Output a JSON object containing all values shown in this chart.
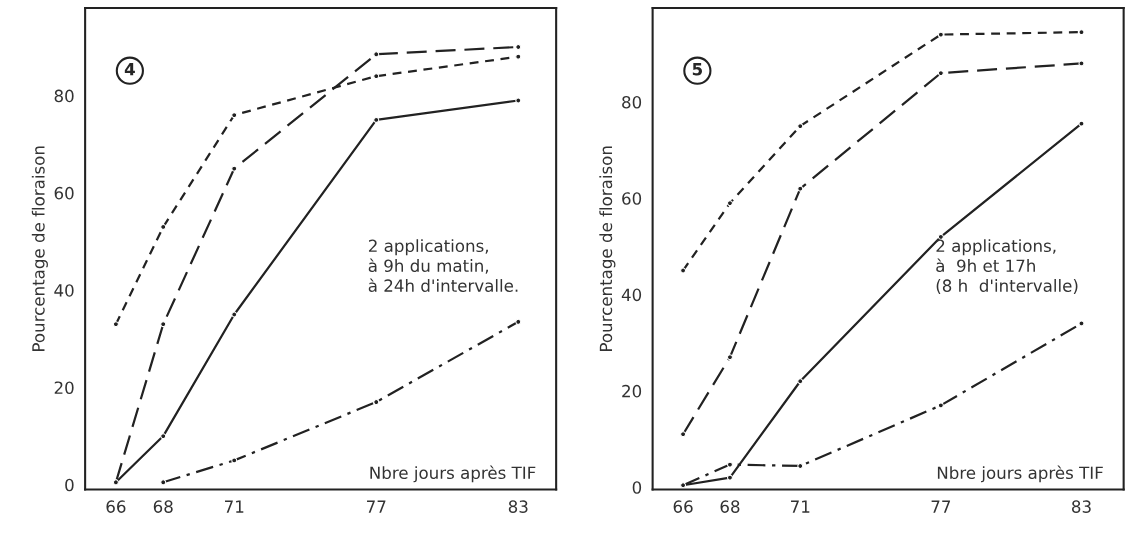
{
  "chart_data": [
    {
      "type": "line",
      "ylabel": "Pourcentage de floraison",
      "xlabel": "Nbre jours après TIF",
      "x": [
        66,
        68,
        71,
        77,
        83
      ],
      "xlim": [
        64.7,
        84.6
      ],
      "ylim": [
        -1,
        98
      ],
      "xticks": [
        66,
        68,
        71,
        77,
        83
      ],
      "yticks": [
        0,
        20,
        40,
        60,
        80
      ],
      "grid": false,
      "legend": false,
      "marker": "circle",
      "annotations": [
        "4",
        "2 applications,\nà 9h du matin,\nà 24h d'intervalle."
      ],
      "series": [
        {
          "color": "#222222",
          "line_style": "dashed",
          "values": [
            33,
            53,
            76,
            84,
            88
          ]
        },
        {
          "color": "#222222",
          "line_style": "longdash",
          "values": [
            0.5,
            33,
            65,
            88.5,
            90
          ]
        },
        {
          "color": "#222222",
          "line_style": "solid",
          "values": [
            0.5,
            10,
            35,
            75,
            79
          ]
        },
        {
          "color": "#222222",
          "line_style": "dashdot",
          "values": [
            null,
            0.5,
            5,
            17,
            33.5
          ]
        }
      ]
    },
    {
      "type": "line",
      "ylabel": "Pourcentage de floraison",
      "xlabel": "Nbre jours après TIF",
      "x": [
        66,
        68,
        71,
        77,
        83
      ],
      "xlim": [
        64.7,
        84.8
      ],
      "ylim": [
        -0.5,
        99.5
      ],
      "xticks": [
        66,
        68,
        71,
        77,
        83
      ],
      "yticks": [
        0,
        20,
        40,
        60,
        80
      ],
      "grid": false,
      "legend": false,
      "marker": "circle",
      "annotations": [
        "5",
        "2 applications,\nà  9h et 17h\n(8 h  d'intervalle)"
      ],
      "series": [
        {
          "color": "#222222",
          "line_style": "dashed",
          "values": [
            45,
            59,
            75,
            94,
            94.5
          ]
        },
        {
          "color": "#222222",
          "line_style": "longdash",
          "values": [
            11,
            27,
            62,
            86,
            88
          ]
        },
        {
          "color": "#222222",
          "line_style": "solid",
          "values": [
            0.4,
            2,
            22,
            52,
            75.5
          ]
        },
        {
          "color": "#222222",
          "line_style": "dashdot",
          "values": [
            0.4,
            4.7,
            4.4,
            17,
            34
          ]
        }
      ]
    }
  ]
}
